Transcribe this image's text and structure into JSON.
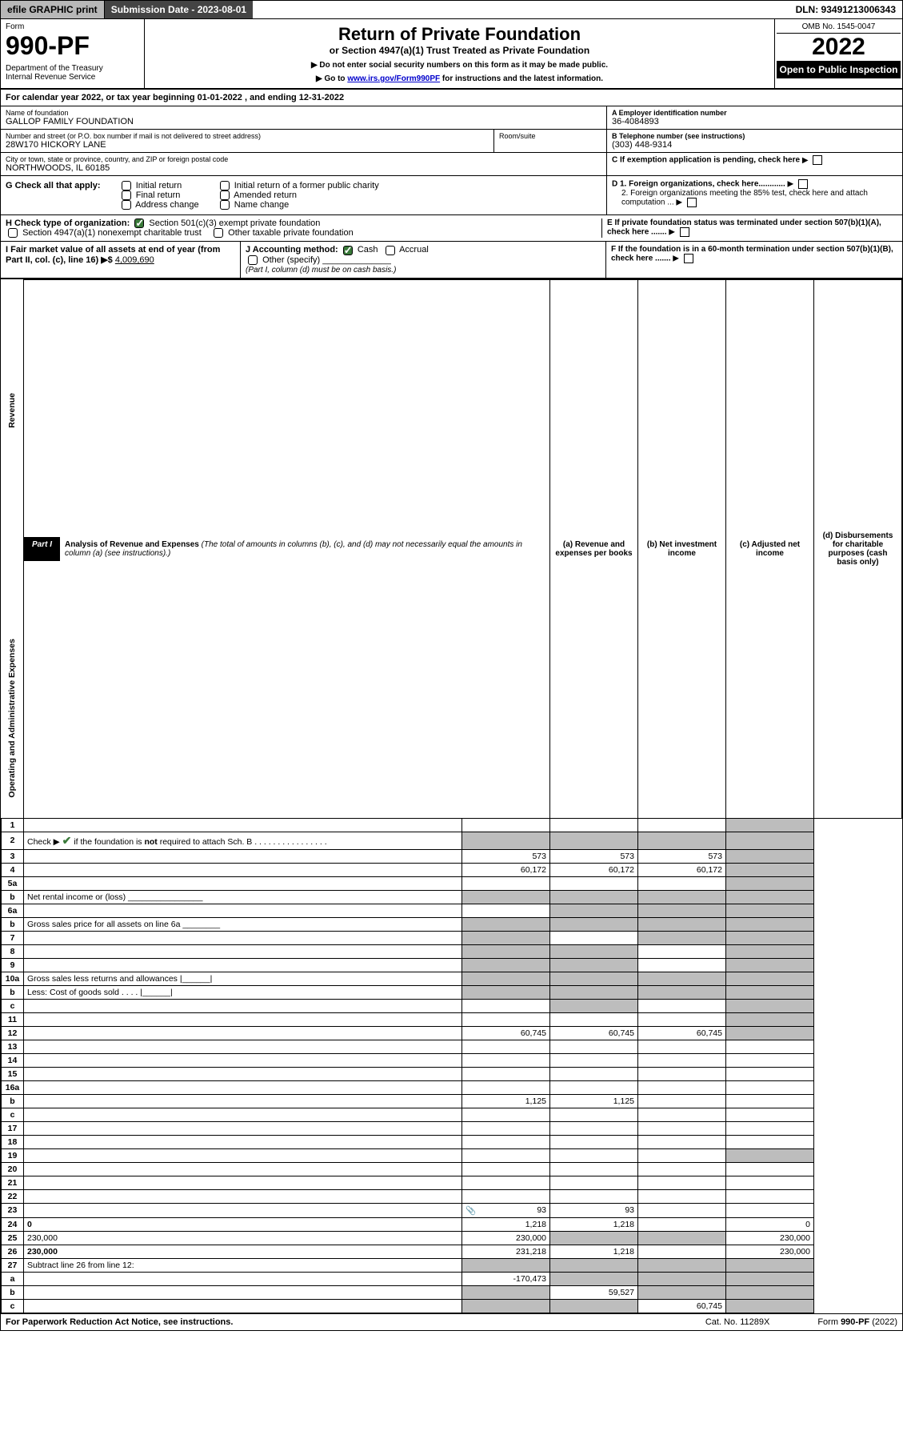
{
  "topbar": {
    "efile": "efile GRAPHIC print",
    "submission": "Submission Date - 2023-08-01",
    "dln": "DLN: 93491213006343"
  },
  "header": {
    "form": "Form",
    "number": "990-PF",
    "dept": "Department of the Treasury\nInternal Revenue Service",
    "title": "Return of Private Foundation",
    "subtitle": "or Section 4947(a)(1) Trust Treated as Private Foundation",
    "note1": "▶ Do not enter social security numbers on this form as it may be made public.",
    "note2_pre": "▶ Go to ",
    "note2_link": "www.irs.gov/Form990PF",
    "note2_post": " for instructions and the latest information.",
    "omb": "OMB No. 1545-0047",
    "year": "2022",
    "open": "Open to Public Inspection"
  },
  "calyear": "For calendar year 2022, or tax year beginning 01-01-2022                          , and ending 12-31-2022",
  "entity": {
    "name_lbl": "Name of foundation",
    "name": "GALLOP FAMILY FOUNDATION",
    "addr_lbl": "Number and street (or P.O. box number if mail is not delivered to street address)",
    "addr": "28W170 HICKORY LANE",
    "room_lbl": "Room/suite",
    "city_lbl": "City or town, state or province, country, and ZIP or foreign postal code",
    "city": "NORTHWOODS, IL  60185",
    "A_lbl": "A Employer identification number",
    "A": "36-4084893",
    "B_lbl": "B Telephone number (see instructions)",
    "B": "(303) 448-9314",
    "C_lbl": "C If exemption application is pending, check here"
  },
  "G": {
    "label": "G Check all that apply:",
    "opts": [
      "Initial return",
      "Final return",
      "Address change",
      "Initial return of a former public charity",
      "Amended return",
      "Name change"
    ]
  },
  "D": {
    "d1": "D 1. Foreign organizations, check here............",
    "d2": "2. Foreign organizations meeting the 85% test, check here and attach computation ..."
  },
  "H": {
    "label": "H Check type of organization:",
    "o1": "Section 501(c)(3) exempt private foundation",
    "o2": "Section 4947(a)(1) nonexempt charitable trust",
    "o3": "Other taxable private foundation"
  },
  "E": "E  If private foundation status was terminated under section 507(b)(1)(A), check here .......",
  "I": {
    "label": "I Fair market value of all assets at end of year (from Part II, col. (c), line 16) ▶$",
    "val": "4,009,690"
  },
  "J": {
    "label": "J Accounting method:",
    "cash": "Cash",
    "accrual": "Accrual",
    "other": "Other (specify)",
    "note": "(Part I, column (d) must be on cash basis.)"
  },
  "F": "F  If the foundation is in a 60-month termination under section 507(b)(1)(B), check here .......",
  "part1": {
    "tab": "Part I",
    "title": "Analysis of Revenue and Expenses",
    "title_note": "(The total of amounts in columns (b), (c), and (d) may not necessarily equal the amounts in column (a) (see instructions).)",
    "cols": {
      "a": "(a)   Revenue and expenses per books",
      "b": "(b)   Net investment income",
      "c": "(c)   Adjusted net income",
      "d": "(d)  Disbursements for charitable purposes (cash basis only)"
    }
  },
  "side_rev": "Revenue",
  "side_exp": "Operating and Administrative Expenses",
  "rows": [
    {
      "n": "1",
      "d": "",
      "a": "",
      "b": "",
      "c": "",
      "shade": [
        "d"
      ]
    },
    {
      "n": "2",
      "d": "Check ▶ ✔ if the foundation is not required to attach Sch. B     .  .  .  .  .  .  .  .  .  .  .  .  .  .  .  .",
      "shade": [
        "a",
        "b",
        "c",
        "d"
      ],
      "noabcd": true
    },
    {
      "n": "3",
      "d": "",
      "a": "573",
      "b": "573",
      "c": "573",
      "shade": [
        "d"
      ]
    },
    {
      "n": "4",
      "d": "",
      "a": "60,172",
      "b": "60,172",
      "c": "60,172",
      "shade": [
        "d"
      ]
    },
    {
      "n": "5a",
      "d": "",
      "a": "",
      "b": "",
      "c": "",
      "shade": [
        "d"
      ]
    },
    {
      "n": "b",
      "d": "Net rental income or (loss)  ________________",
      "shade": [
        "a",
        "b",
        "c",
        "d"
      ],
      "noabcd": true
    },
    {
      "n": "6a",
      "d": "",
      "a": "",
      "b": "",
      "c": "",
      "shade": [
        "b",
        "c",
        "d"
      ]
    },
    {
      "n": "b",
      "d": "Gross sales price for all assets on line 6a ________",
      "shade": [
        "a",
        "b",
        "c",
        "d"
      ],
      "noabcd": true
    },
    {
      "n": "7",
      "d": "",
      "a": "",
      "b": "",
      "c": "",
      "shade": [
        "a",
        "c",
        "d"
      ]
    },
    {
      "n": "8",
      "d": "",
      "a": "",
      "b": "",
      "c": "",
      "shade": [
        "a",
        "b",
        "d"
      ]
    },
    {
      "n": "9",
      "d": "",
      "a": "",
      "b": "",
      "c": "",
      "shade": [
        "a",
        "b",
        "d"
      ]
    },
    {
      "n": "10a",
      "d": "Gross sales less returns and allowances  |______|",
      "shade": [
        "a",
        "b",
        "c",
        "d"
      ],
      "noabcd": true
    },
    {
      "n": "b",
      "d": "Less: Cost of goods sold     .   .   .   .   |______|",
      "shade": [
        "a",
        "b",
        "c",
        "d"
      ],
      "noabcd": true
    },
    {
      "n": "c",
      "d": "",
      "a": "",
      "b": "",
      "c": "",
      "shade": [
        "b",
        "d"
      ]
    },
    {
      "n": "11",
      "d": "",
      "a": "",
      "b": "",
      "c": "",
      "shade": [
        "d"
      ]
    },
    {
      "n": "12",
      "d": "",
      "a": "60,745",
      "b": "60,745",
      "c": "60,745",
      "shade": [
        "d"
      ],
      "bold": true
    },
    {
      "n": "13",
      "d": "",
      "a": "",
      "b": "",
      "c": ""
    },
    {
      "n": "14",
      "d": "",
      "a": "",
      "b": "",
      "c": ""
    },
    {
      "n": "15",
      "d": "",
      "a": "",
      "b": "",
      "c": ""
    },
    {
      "n": "16a",
      "d": "",
      "a": "",
      "b": "",
      "c": ""
    },
    {
      "n": "b",
      "d": "",
      "a": "1,125",
      "b": "1,125",
      "c": ""
    },
    {
      "n": "c",
      "d": "",
      "a": "",
      "b": "",
      "c": ""
    },
    {
      "n": "17",
      "d": "",
      "a": "",
      "b": "",
      "c": ""
    },
    {
      "n": "18",
      "d": "",
      "a": "",
      "b": "",
      "c": ""
    },
    {
      "n": "19",
      "d": "",
      "a": "",
      "b": "",
      "c": "",
      "shade": [
        "d"
      ]
    },
    {
      "n": "20",
      "d": "",
      "a": "",
      "b": "",
      "c": ""
    },
    {
      "n": "21",
      "d": "",
      "a": "",
      "b": "",
      "c": ""
    },
    {
      "n": "22",
      "d": "",
      "a": "",
      "b": "",
      "c": ""
    },
    {
      "n": "23",
      "d": "",
      "a": "93",
      "b": "93",
      "c": "",
      "icon": true
    },
    {
      "n": "24",
      "d": "0",
      "a": "1,218",
      "b": "1,218",
      "c": "",
      "bold": true
    },
    {
      "n": "25",
      "d": "230,000",
      "a": "230,000",
      "b": "",
      "c": "",
      "shade": [
        "b",
        "c"
      ]
    },
    {
      "n": "26",
      "d": "230,000",
      "a": "231,218",
      "b": "1,218",
      "c": "",
      "bold": true
    },
    {
      "n": "27",
      "d": "Subtract line 26 from line 12:",
      "shade": [
        "a",
        "b",
        "c",
        "d"
      ],
      "noabcd": true
    },
    {
      "n": "a",
      "d": "",
      "a": "-170,473",
      "b": "",
      "c": "",
      "shade": [
        "b",
        "c",
        "d"
      ],
      "bold": true
    },
    {
      "n": "b",
      "d": "",
      "a": "",
      "b": "59,527",
      "c": "",
      "shade": [
        "a",
        "c",
        "d"
      ],
      "bold": true
    },
    {
      "n": "c",
      "d": "",
      "a": "",
      "b": "",
      "c": "60,745",
      "shade": [
        "a",
        "b",
        "d"
      ],
      "bold": true
    }
  ],
  "footer": {
    "left": "For Paperwork Reduction Act Notice, see instructions.",
    "mid": "Cat. No. 11289X",
    "right": "Form 990-PF (2022)"
  }
}
